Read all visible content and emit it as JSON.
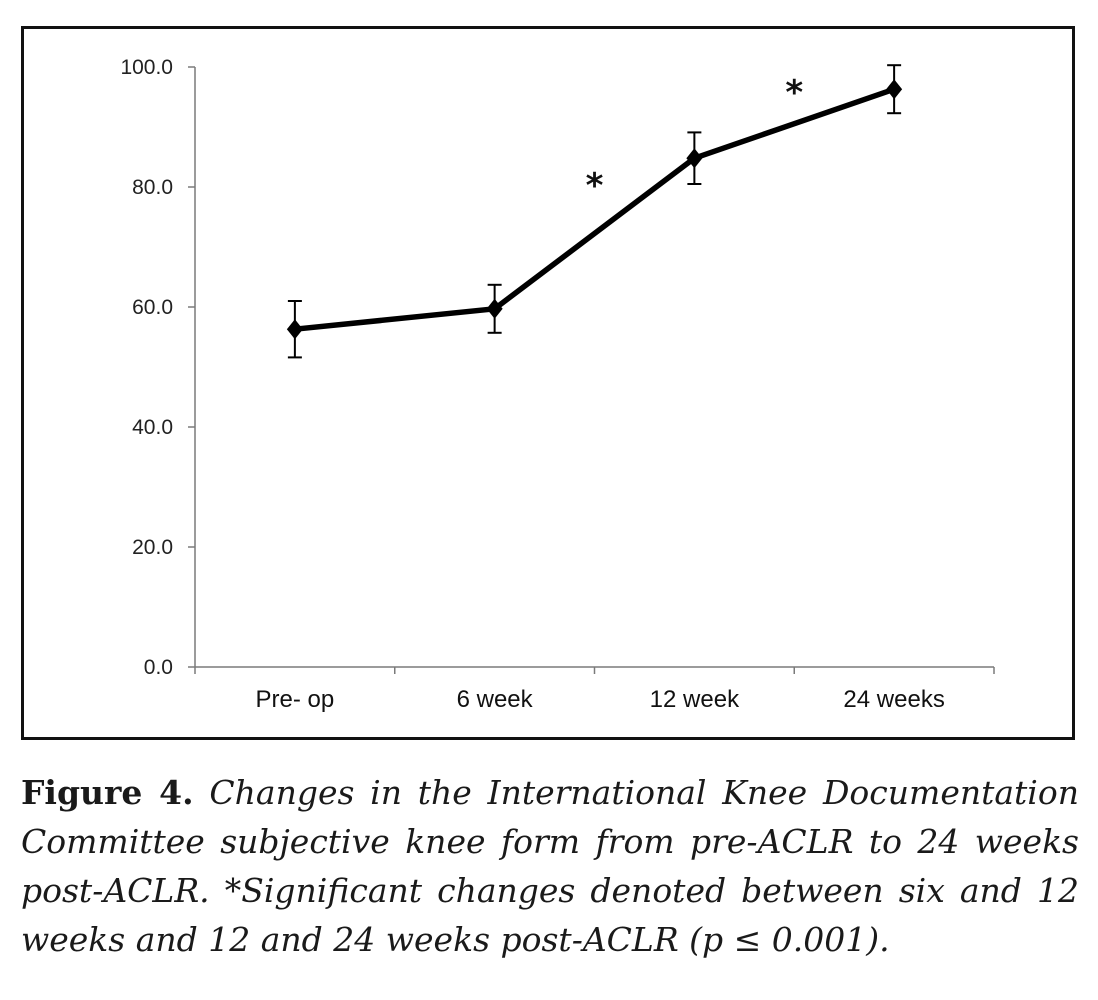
{
  "chart_data": {
    "type": "line",
    "title": "",
    "xlabel": "",
    "ylabel": "",
    "categories": [
      "Pre- op",
      "6 week",
      "12 week",
      "24 weeks"
    ],
    "y_ticks": [
      "0.0",
      "20.0",
      "40.0",
      "60.0",
      "80.0",
      "100.0"
    ],
    "ylim": [
      0,
      100
    ],
    "grid": false,
    "legend": "none",
    "series": [
      {
        "values": [
          56.3,
          59.7,
          84.8,
          96.3
        ],
        "error": [
          4.7,
          4.0,
          4.3,
          4.0
        ],
        "marker": "diamond",
        "color": "#000000"
      }
    ],
    "annotations": [
      {
        "text": "*",
        "between": [
          1,
          2
        ],
        "y": 82
      },
      {
        "text": "*",
        "between": [
          2,
          3
        ],
        "y": 97.5
      }
    ]
  },
  "caption": {
    "label": "Figure 4.",
    "text": "Changes in the International Knee Documentation Committee subjective knee form from pre-ACLR to 24 weeks post-ACLR. *Significant changes denoted between six and 12 weeks and 12 and 24 weeks post-ACLR (p ≤ 0.001)."
  }
}
